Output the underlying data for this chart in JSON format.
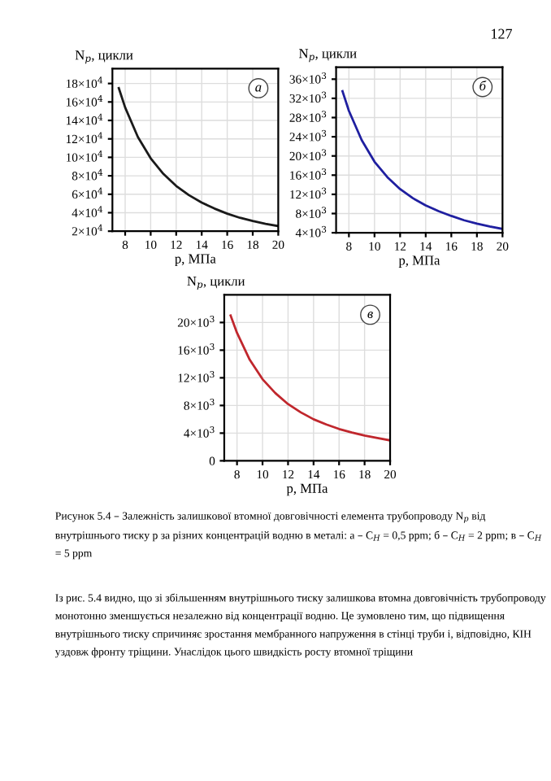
{
  "chart_data": [
    {
      "type": "line",
      "xlabel": "p, МПа",
      "ylabel": "N$_{p}$, цикли",
      "x": [
        7.5,
        8,
        9,
        10,
        11,
        12,
        13,
        14,
        15,
        16,
        17,
        18,
        19,
        20
      ],
      "series": [
        {
          "color": "#1a1a1a",
          "values": [
            175000,
            154000,
            122000,
            99000,
            82000,
            69000,
            59000,
            51000,
            44500,
            39000,
            34500,
            31000,
            28000,
            25500
          ]
        }
      ],
      "xlim": [
        7,
        20
      ],
      "xticks": [
        8,
        10,
        12,
        14,
        16,
        18,
        20
      ],
      "ylim": [
        20000,
        196000
      ],
      "yticks": [
        {
          "value": 20000,
          "label": "2×10$^{4}$"
        },
        {
          "value": 40000,
          "label": "4×10$^{4}$"
        },
        {
          "value": 60000,
          "label": "6×10$^{4}$"
        },
        {
          "value": 80000,
          "label": "8×10$^{4}$"
        },
        {
          "value": 100000,
          "label": "10×10$^{4}$"
        },
        {
          "value": 120000,
          "label": "12×10$^{4}$"
        },
        {
          "value": 140000,
          "label": "14×10$^{4}$"
        },
        {
          "value": 160000,
          "label": "16×10$^{4}$"
        },
        {
          "value": 180000,
          "label": "18×10$^{4}$"
        }
      ],
      "grid": true,
      "annotations": [
        "а"
      ]
    },
    {
      "type": "line",
      "xlabel": "p, МПа",
      "ylabel": "N$_{p}$, цикли",
      "x": [
        7.5,
        8,
        9,
        10,
        11,
        12,
        13,
        14,
        15,
        16,
        17,
        18,
        19,
        20
      ],
      "series": [
        {
          "color": "#1f1fa0",
          "values": [
            33500,
            29400,
            23300,
            18800,
            15600,
            13100,
            11200,
            9700,
            8500,
            7500,
            6600,
            5900,
            5300,
            4800
          ]
        }
      ],
      "xlim": [
        7,
        20
      ],
      "xticks": [
        8,
        10,
        12,
        14,
        16,
        18,
        20
      ],
      "ylim": [
        4000,
        38500
      ],
      "yticks": [
        {
          "value": 4000,
          "label": "4×10$^{3}$"
        },
        {
          "value": 8000,
          "label": "8×10$^{3}$"
        },
        {
          "value": 12000,
          "label": "12×10$^{3}$"
        },
        {
          "value": 16000,
          "label": "16×10$^{3}$"
        },
        {
          "value": 20000,
          "label": "20×10$^{3}$"
        },
        {
          "value": 24000,
          "label": "24×10$^{3}$"
        },
        {
          "value": 28000,
          "label": "28×10$^{3}$"
        },
        {
          "value": 32000,
          "label": "32×10$^{3}$"
        },
        {
          "value": 36000,
          "label": "36×10$^{3}$"
        }
      ],
      "grid": true,
      "annotations": [
        "б",
        "127"
      ]
    },
    {
      "type": "line",
      "xlabel": "p, МПа",
      "ylabel": "N$_{p}$, цикли",
      "x": [
        7.5,
        8,
        9,
        10,
        11,
        12,
        13,
        14,
        15,
        16,
        17,
        18,
        19,
        20
      ],
      "series": [
        {
          "color": "#c0272d",
          "values": [
            21000,
            18500,
            14600,
            11800,
            9800,
            8200,
            7000,
            6000,
            5250,
            4600,
            4100,
            3650,
            3300,
            2950
          ]
        }
      ],
      "xlim": [
        7,
        20
      ],
      "xticks": [
        8,
        10,
        12,
        14,
        16,
        18,
        20
      ],
      "ylim": [
        0,
        24000
      ],
      "yticks": [
        0,
        {
          "value": 4000,
          "label": "4×10$^{3}$"
        },
        {
          "value": 8000,
          "label": "8×10$^{3}$"
        },
        {
          "value": 12000,
          "label": "12×10$^{3}$"
        },
        {
          "value": 16000,
          "label": "16×10$^{3}$"
        },
        {
          "value": 20000,
          "label": "20×10$^{3}$"
        }
      ],
      "grid": true,
      "annotations": [
        "в",
        "Рисунок 5.4 – Залежність залишкової втомної довговічності елемента трубопроводу N$_{p}$ від внутрішнього тиску p за різних концентрацій водню в металі: а – C$_{H}$ = 0,5 ppm; б – C$_{H}$ = 2 ppm; в – C$_{H}$ = 5 ppm",
        "Із рис. 5.4 видно, що зі збільшенням внутрішнього тиску залишкова втомна довговічність трубопроводу монотонно зменшується незалежно від концентрації водню. Це зумовлено тим, що підвищення внутрішнього тиску спричиняє зростання мембранного напруження в стінці труби і, відповідно, КІН уздовж фронту тріщини. Унаслідок цього швидкість росту втомної тріщини"
      ]
    }
  ]
}
